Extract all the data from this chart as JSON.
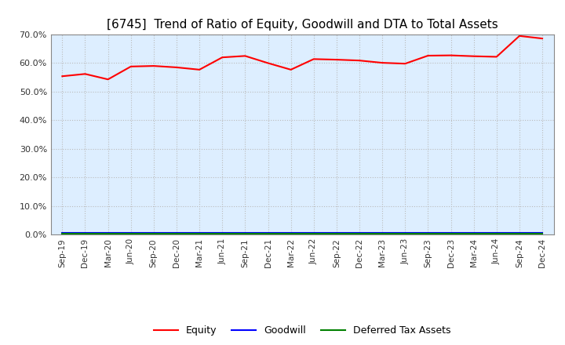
{
  "title": "[6745]  Trend of Ratio of Equity, Goodwill and DTA to Total Assets",
  "labels": [
    "Sep-19",
    "Dec-19",
    "Mar-20",
    "Jun-20",
    "Sep-20",
    "Dec-20",
    "Mar-21",
    "Jun-21",
    "Sep-21",
    "Dec-21",
    "Mar-22",
    "Jun-22",
    "Sep-22",
    "Dec-22",
    "Mar-23",
    "Jun-23",
    "Sep-23",
    "Dec-23",
    "Mar-24",
    "Jun-24",
    "Sep-24",
    "Dec-24"
  ],
  "equity": [
    0.554,
    0.562,
    0.543,
    0.588,
    0.59,
    0.585,
    0.577,
    0.62,
    0.625,
    0.6,
    0.577,
    0.614,
    0.612,
    0.609,
    0.601,
    0.598,
    0.626,
    0.627,
    0.624,
    0.622,
    0.695,
    0.686
  ],
  "goodwill": [
    0.007,
    0.007,
    0.007,
    0.007,
    0.007,
    0.007,
    0.007,
    0.007,
    0.007,
    0.007,
    0.007,
    0.007,
    0.007,
    0.007,
    0.007,
    0.007,
    0.007,
    0.007,
    0.007,
    0.007,
    0.007,
    0.007
  ],
  "dta": [
    0.003,
    0.003,
    0.003,
    0.003,
    0.003,
    0.003,
    0.003,
    0.003,
    0.003,
    0.003,
    0.003,
    0.003,
    0.003,
    0.003,
    0.003,
    0.003,
    0.003,
    0.003,
    0.003,
    0.003,
    0.003,
    0.003
  ],
  "equity_color": "#FF0000",
  "goodwill_color": "#0000FF",
  "dta_color": "#008000",
  "ylim": [
    0.0,
    0.7
  ],
  "yticks": [
    0.0,
    0.1,
    0.2,
    0.3,
    0.4,
    0.5,
    0.6,
    0.7
  ],
  "background_color": "#FFFFFF",
  "plot_bg_color": "#DDEEFF",
  "grid_color": "#BBBBBB",
  "title_color": "#000000",
  "title_fontsize": 11,
  "legend_labels": [
    "Equity",
    "Goodwill",
    "Deferred Tax Assets"
  ]
}
